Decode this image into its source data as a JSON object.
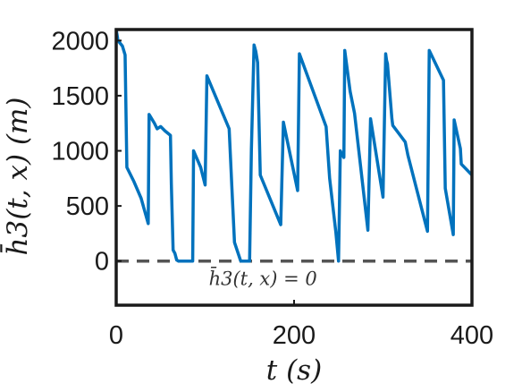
{
  "chart_data": {
    "type": "line",
    "xlabel": "t (s)",
    "ylabel": "h̄3(t, x) (m)",
    "xlim": [
      0,
      400
    ],
    "ylim": [
      -400,
      2100
    ],
    "xticks": [
      "0",
      "200",
      "400"
    ],
    "yticks": [
      "0",
      "500",
      "1000",
      "1500",
      "2000"
    ],
    "grid": false,
    "annotation": "h̄3(t, x) = 0",
    "series": [
      {
        "color": "#0072BD",
        "x": [
          0,
          2,
          7,
          10,
          12,
          20,
          28,
          36,
          37,
          43,
          46,
          50,
          55,
          61,
          62,
          64,
          66,
          68,
          70,
          75,
          80,
          86,
          87,
          95,
          100,
          102,
          127,
          130,
          133,
          140,
          148,
          150,
          152,
          155,
          157,
          159,
          162,
          185,
          188,
          204,
          206,
          236,
          240,
          247,
          250,
          252,
          253,
          256,
          257,
          263,
          268,
          283,
          286,
          300,
          303,
          304,
          305,
          310,
          311,
          325,
          328,
          350,
          352,
          368,
          370,
          379,
          380,
          387,
          388,
          400
        ],
        "y": [
          2100,
          2000,
          1950,
          1870,
          850,
          720,
          570,
          340,
          1330,
          1250,
          1200,
          1220,
          1180,
          1140,
          700,
          100,
          70,
          10,
          0,
          0,
          0,
          0,
          1000,
          850,
          690,
          1680,
          1200,
          680,
          170,
          0,
          0,
          0,
          1010,
          1960,
          1900,
          1800,
          780,
          330,
          1260,
          640,
          1880,
          1220,
          750,
          260,
          0,
          1000,
          980,
          940,
          1910,
          1540,
          1340,
          280,
          1290,
          580,
          1880,
          1820,
          1790,
          1290,
          1230,
          1080,
          960,
          270,
          1910,
          1640,
          660,
          240,
          1280,
          1020,
          880,
          780
        ]
      }
    ]
  }
}
